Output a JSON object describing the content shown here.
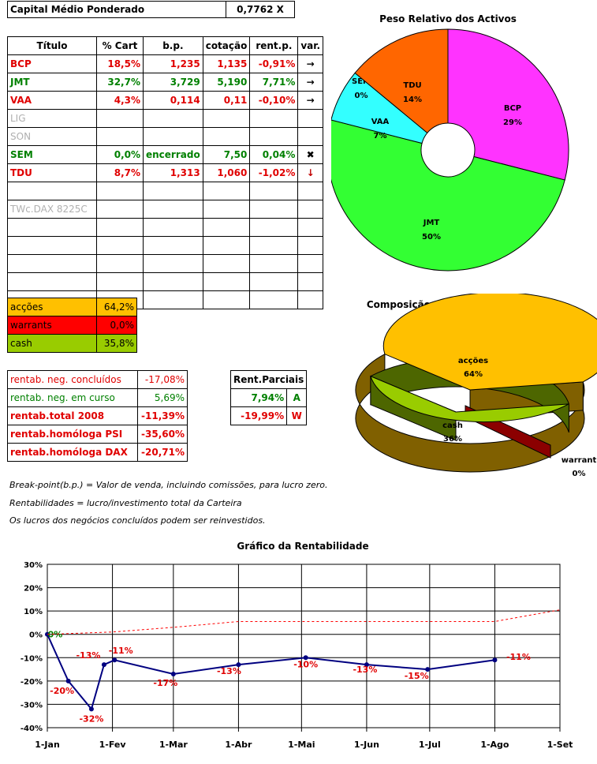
{
  "capital": {
    "label": "Capital Médio Ponderado",
    "value": "0,7762 X"
  },
  "holdings": {
    "headers": [
      "Título",
      "% Cart",
      "b.p.",
      "cotação",
      "rent.p.",
      "var."
    ],
    "rows": [
      {
        "titulo": "BCP",
        "cart": "18,5%",
        "bp": "1,235",
        "cot": "1,135",
        "rent": "-0,91%",
        "var": "→",
        "color": "red"
      },
      {
        "titulo": "JMT",
        "cart": "32,7%",
        "bp": "3,729",
        "cot": "5,190",
        "rent": "7,71%",
        "var": "→",
        "color": "grn"
      },
      {
        "titulo": "VAA",
        "cart": "4,3%",
        "bp": "0,114",
        "cot": "0,11",
        "rent": "-0,10%",
        "var": "→",
        "color": "red"
      },
      {
        "titulo": "LIG",
        "cart": "",
        "bp": "",
        "cot": "",
        "rent": "",
        "var": "",
        "color": "gry"
      },
      {
        "titulo": "SON",
        "cart": "",
        "bp": "",
        "cot": "",
        "rent": "",
        "var": "",
        "color": "gry"
      },
      {
        "titulo": "SEM",
        "cart": "0,0%",
        "bp": "encerrado",
        "cot": "7,50",
        "rent": "0,04%",
        "var": "✖",
        "color": "grn"
      },
      {
        "titulo": "TDU",
        "cart": "8,7%",
        "bp": "1,313",
        "cot": "1,060",
        "rent": "-1,02%",
        "var": "↓",
        "color": "red"
      },
      {
        "titulo": "",
        "cart": "",
        "bp": "",
        "cot": "",
        "rent": "",
        "var": "",
        "color": "gry"
      },
      {
        "titulo": "TWc.DAX 8225C",
        "cart": "",
        "bp": "",
        "cot": "",
        "rent": "",
        "var": "",
        "color": "gry"
      },
      {
        "titulo": "",
        "cart": "",
        "bp": "",
        "cot": "",
        "rent": "",
        "var": "",
        "color": "gry"
      },
      {
        "titulo": "",
        "cart": "",
        "bp": "",
        "cot": "",
        "rent": "",
        "var": "",
        "color": "gry"
      },
      {
        "titulo": "",
        "cart": "",
        "bp": "",
        "cot": "",
        "rent": "",
        "var": "",
        "color": "gry"
      },
      {
        "titulo": "",
        "cart": "",
        "bp": "",
        "cot": "",
        "rent": "",
        "var": "",
        "color": "gry"
      },
      {
        "titulo": "",
        "cart": "",
        "bp": "",
        "cot": "",
        "rent": "",
        "var": "",
        "color": "gry"
      }
    ]
  },
  "composition": [
    {
      "label": "acções",
      "value": "64,2%",
      "bg": "#ffc000"
    },
    {
      "label": "warrants",
      "value": "0,0%",
      "bg": "#ff0000"
    },
    {
      "label": "cash",
      "value": "35,8%",
      "bg": "#99cc00"
    }
  ],
  "rentab": [
    {
      "label": "rentab. neg. concluídos",
      "value": "-17,08%",
      "color": "red",
      "bold": false
    },
    {
      "label": "rentab. neg. em curso",
      "value": "5,69%",
      "color": "grn",
      "bold": false
    },
    {
      "label": "rentab.total 2008",
      "value": "-11,39%",
      "color": "red",
      "bold": true
    },
    {
      "label": "rentab.homóloga PSI",
      "value": "-35,60%",
      "color": "red",
      "bold": true
    },
    {
      "label": "rentab.homóloga DAX",
      "value": "-20,71%",
      "color": "red",
      "bold": true
    }
  ],
  "parciais": {
    "header": "Rent.Parciais",
    "rows": [
      {
        "value": "7,94%",
        "tag": "A",
        "color": "grn"
      },
      {
        "value": "-19,99%",
        "tag": "W",
        "color": "red"
      }
    ]
  },
  "notes": [
    "Break-point(b.p.) = Valor de venda, incluindo comissões, para lucro zero.",
    "Rentabilidades = lucro/investimento total da Carteira",
    "Os lucros dos negócios concluídos podem ser reinvestidos."
  ],
  "chart_data": [
    {
      "type": "pie",
      "title": "Peso Relativo dos Activos",
      "slices": [
        {
          "label": "BCP",
          "pct_label": "29%",
          "value": 29,
          "color": "#ff33ff"
        },
        {
          "label": "JMT",
          "pct_label": "50%",
          "value": 50,
          "color": "#33ff33"
        },
        {
          "label": "VAA",
          "pct_label": "7%",
          "value": 7,
          "color": "#33ffff"
        },
        {
          "label": "SEM",
          "pct_label": "0%",
          "value": 0,
          "color": "#999999"
        },
        {
          "label": "TDU",
          "pct_label": "14%",
          "value": 14,
          "color": "#ff6600"
        }
      ]
    },
    {
      "type": "pie",
      "title": "Composição Carteira JAS*2008",
      "slices": [
        {
          "label": "acções",
          "pct_label": "64%",
          "value": 64,
          "color": "#ffc000"
        },
        {
          "label": "warrant",
          "pct_label": "0%",
          "value": 0,
          "color": "#8b0000"
        },
        {
          "label": "cash",
          "pct_label": "36%",
          "value": 36,
          "color": "#99cc00"
        }
      ]
    },
    {
      "type": "line",
      "title": "Gráfico da Rentabilidade",
      "x_ticks": [
        "1-Jan",
        "1-Fev",
        "1-Mar",
        "1-Abr",
        "1-Mai",
        "1-Jun",
        "1-Jul",
        "1-Ago",
        "1-Set"
      ],
      "y_ticks": [
        "30%",
        "20%",
        "10%",
        "0%",
        "-10%",
        "-20%",
        "-30%",
        "-40%"
      ],
      "ylim": [
        -40,
        30
      ],
      "grid": true,
      "series": [
        {
          "style": "solid",
          "color": "#000080",
          "points": [
            {
              "x": "2008-01-01",
              "y": 0,
              "label": "0%"
            },
            {
              "x": "2008-01-11",
              "y": -20,
              "label": "-20%"
            },
            {
              "x": "2008-01-22",
              "y": -32,
              "label": "-32%"
            },
            {
              "x": "2008-01-28",
              "y": -13,
              "label": "-13%"
            },
            {
              "x": "2008-02-02",
              "y": -11,
              "label": "-11%"
            },
            {
              "x": "2008-03-01",
              "y": -17,
              "label": "-17%"
            },
            {
              "x": "2008-04-01",
              "y": -13,
              "label": "-13%"
            },
            {
              "x": "2008-05-03",
              "y": -10,
              "label": "-10%"
            },
            {
              "x": "2008-06-01",
              "y": -13,
              "label": "-13%"
            },
            {
              "x": "2008-06-30",
              "y": -15,
              "label": "-15%"
            },
            {
              "x": "2008-08-01",
              "y": -11,
              "label": "-11%"
            }
          ]
        },
        {
          "style": "dotted",
          "color": "#ff0000",
          "points": [
            {
              "x": "2008-01-01",
              "y": 0
            },
            {
              "x": "2008-02-01",
              "y": 1
            },
            {
              "x": "2008-03-01",
              "y": 3
            },
            {
              "x": "2008-04-01",
              "y": 5.5
            },
            {
              "x": "2008-05-01",
              "y": 5.5
            },
            {
              "x": "2008-06-01",
              "y": 5.5
            },
            {
              "x": "2008-07-01",
              "y": 5.5
            },
            {
              "x": "2008-08-01",
              "y": 5.5
            },
            {
              "x": "2008-09-01",
              "y": 10.5
            }
          ]
        }
      ]
    }
  ]
}
